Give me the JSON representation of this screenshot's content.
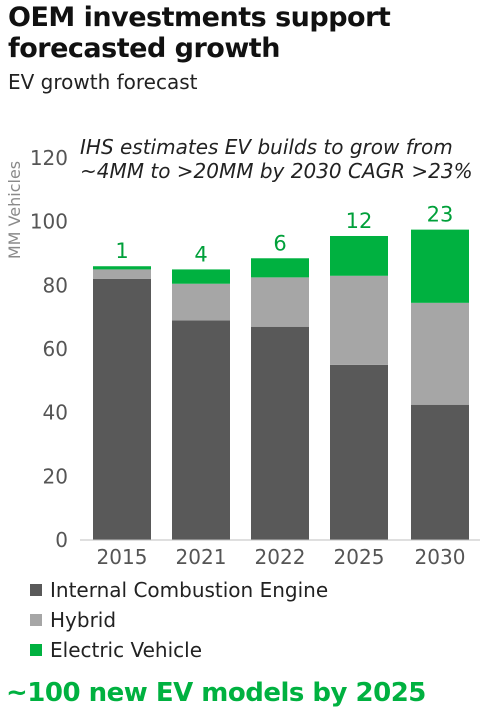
{
  "header": {
    "title": "OEM investments support forecasted growth",
    "subtitle": "EV growth forecast"
  },
  "chart_data": {
    "type": "bar",
    "stacked": true,
    "annotation_line1": "IHS estimates EV builds to grow from",
    "annotation_line2": "~4MM to >20MM by 2030 CAGR >23%",
    "ylabel": "MM Vehicles",
    "ylim": [
      0,
      120
    ],
    "yticks": [
      "0",
      "20",
      "40",
      "60",
      "80",
      "100",
      "120"
    ],
    "categories": [
      "2015",
      "2021",
      "2022",
      "2025",
      "2030"
    ],
    "series": [
      {
        "name": "Internal Combustion Engine",
        "color": "#595959",
        "values": [
          82,
          69,
          67,
          55,
          42.5
        ]
      },
      {
        "name": "Hybrid",
        "color": "#a6a6a6",
        "values": [
          3,
          11.5,
          15.5,
          28,
          32
        ]
      },
      {
        "name": "Electric Vehicle",
        "color": "#00b140",
        "values": [
          1,
          4.5,
          6,
          12.5,
          23
        ]
      }
    ],
    "data_labels": [
      "1",
      "4",
      "6",
      "12",
      "23"
    ],
    "data_label_color": "#00a03a",
    "grid": false,
    "legend_position": "bottom-left"
  },
  "footer": {
    "text": "~100 new EV models by 2025"
  }
}
